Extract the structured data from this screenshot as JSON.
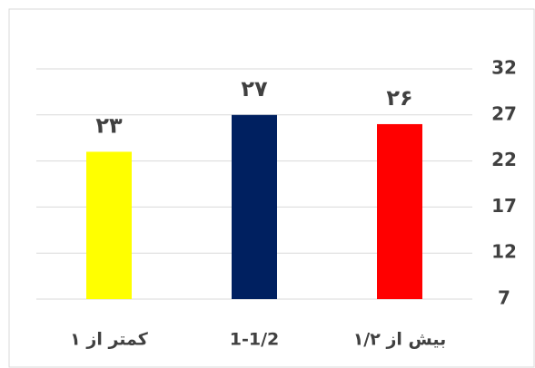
{
  "chart_data": {
    "type": "bar",
    "categories": [
      "کمتر از ۱",
      "1-1/2",
      "بیش از ۱/۲"
    ],
    "values": [
      23,
      27,
      26
    ],
    "value_labels": [
      "۲۳",
      "۲۷",
      "۲۶"
    ],
    "colors": [
      "#ffff00",
      "#002060",
      "#ff0000"
    ],
    "ylim": [
      7,
      32
    ],
    "yticks": [
      7,
      12,
      17,
      22,
      27,
      32
    ],
    "grid": true,
    "y_axis_side": "right"
  }
}
